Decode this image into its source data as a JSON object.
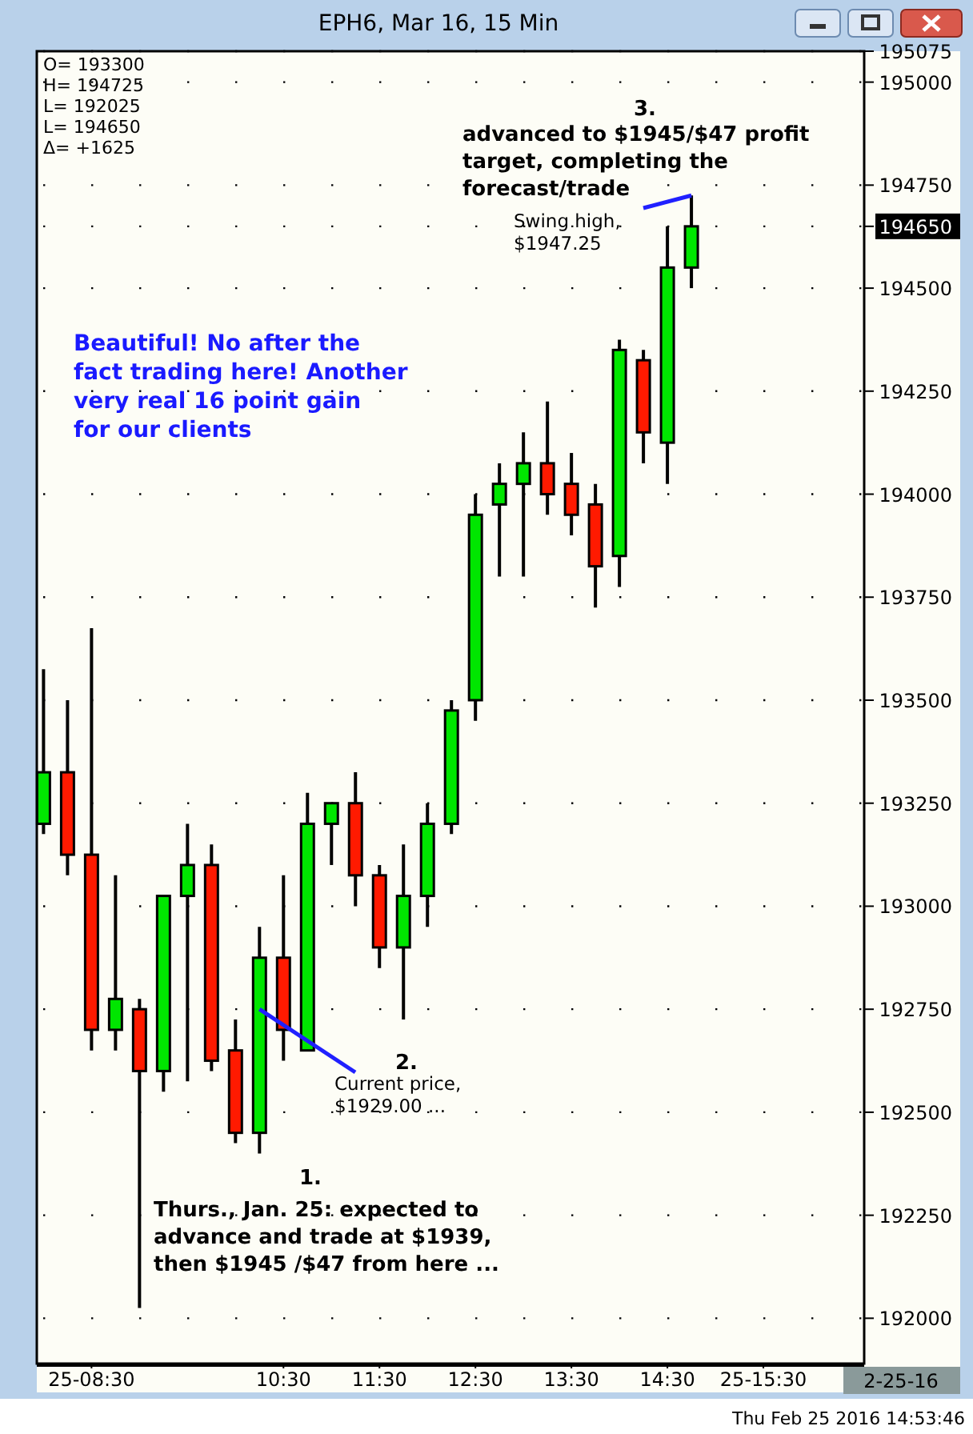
{
  "chart_data": {
    "type": "candlestick",
    "title": "EPH6, Mar 16, 15 Min",
    "x": [
      8,
      8.25,
      8.5,
      8.75,
      9,
      9.25,
      9.5,
      9.75,
      10,
      10.25,
      10.5,
      10.75,
      11,
      11.25,
      11.5,
      11.75,
      12,
      12.25,
      12.5,
      12.75,
      13,
      13.25,
      13.5,
      13.75,
      14,
      14.25,
      14.5,
      14.75
    ],
    "ohlc": [
      [
        193200,
        193575,
        193175,
        193325
      ],
      [
        193325,
        193500,
        193075,
        193125
      ],
      [
        193125,
        193675,
        192650,
        192700
      ],
      [
        192700,
        193075,
        192650,
        192775
      ],
      [
        192750,
        192775,
        192025,
        192600
      ],
      [
        192600,
        193025,
        192550,
        193025
      ],
      [
        193025,
        193200,
        192575,
        193100
      ],
      [
        193100,
        193150,
        192600,
        192625
      ],
      [
        192650,
        192725,
        192425,
        192450
      ],
      [
        192450,
        192950,
        192400,
        192875
      ],
      [
        192875,
        193075,
        192625,
        192700
      ],
      [
        192650,
        193275,
        192650,
        193200
      ],
      [
        193200,
        193250,
        193100,
        193250
      ],
      [
        193250,
        193325,
        193000,
        193075
      ],
      [
        193075,
        193100,
        192850,
        192900
      ],
      [
        192900,
        193150,
        192725,
        193025
      ],
      [
        193025,
        193250,
        192950,
        193200
      ],
      [
        193200,
        193500,
        193175,
        193475
      ],
      [
        193500,
        194000,
        193450,
        193950
      ],
      [
        193975,
        194075,
        193800,
        194025
      ],
      [
        194025,
        194150,
        193800,
        194075
      ],
      [
        194075,
        194225,
        193950,
        194000
      ],
      [
        194025,
        194100,
        193900,
        193950
      ],
      [
        193975,
        194025,
        193725,
        193825
      ],
      [
        193850,
        194375,
        193775,
        194350
      ],
      [
        194325,
        194350,
        194075,
        194150
      ],
      [
        194125,
        194650,
        194025,
        194550
      ],
      [
        194550,
        194725,
        194500,
        194650
      ]
    ],
    "xlim": [
      7.93,
      16.55
    ],
    "xticks": [
      {
        "value": 8.5,
        "label": "25-08:30"
      },
      {
        "value": 10.5,
        "label": "10:30"
      },
      {
        "value": 11.5,
        "label": "11:30"
      },
      {
        "value": 12.5,
        "label": "12:30"
      },
      {
        "value": 13.5,
        "label": "13:30"
      },
      {
        "value": 14.5,
        "label": "14:30"
      },
      {
        "value": 15.5,
        "label": "25-15:30"
      }
    ],
    "ylim": [
      191890,
      195075
    ],
    "yticks": [
      192000,
      192250,
      192500,
      192750,
      193000,
      193250,
      193500,
      193750,
      194000,
      194250,
      194500,
      194650,
      194750,
      195000,
      195075
    ],
    "grid": true,
    "annotations": [
      "O= 193300",
      "H= 194725",
      "L= 192025",
      "L= 194650",
      "Δ= +1625",
      "3.",
      "advanced to $1945/$47 profit target, completing the forecast/trade",
      {
        "text": "Swing high, $1947.25",
        "x": 14.75,
        "y": 194725
      },
      "Beautiful! No after the fact trading here! Another very real 16 point gain for our clients",
      "2.",
      {
        "text": "Current price, $1929.00 ...",
        "x": 10.25,
        "y": 192750
      },
      "1.",
      "Thurs., Jan. 25: expected to advance and trade at $1939, then $1945 /$47 from here ...",
      "2-25-16",
      "Thu Feb 25 2016 14:53:46"
    ]
  }
}
